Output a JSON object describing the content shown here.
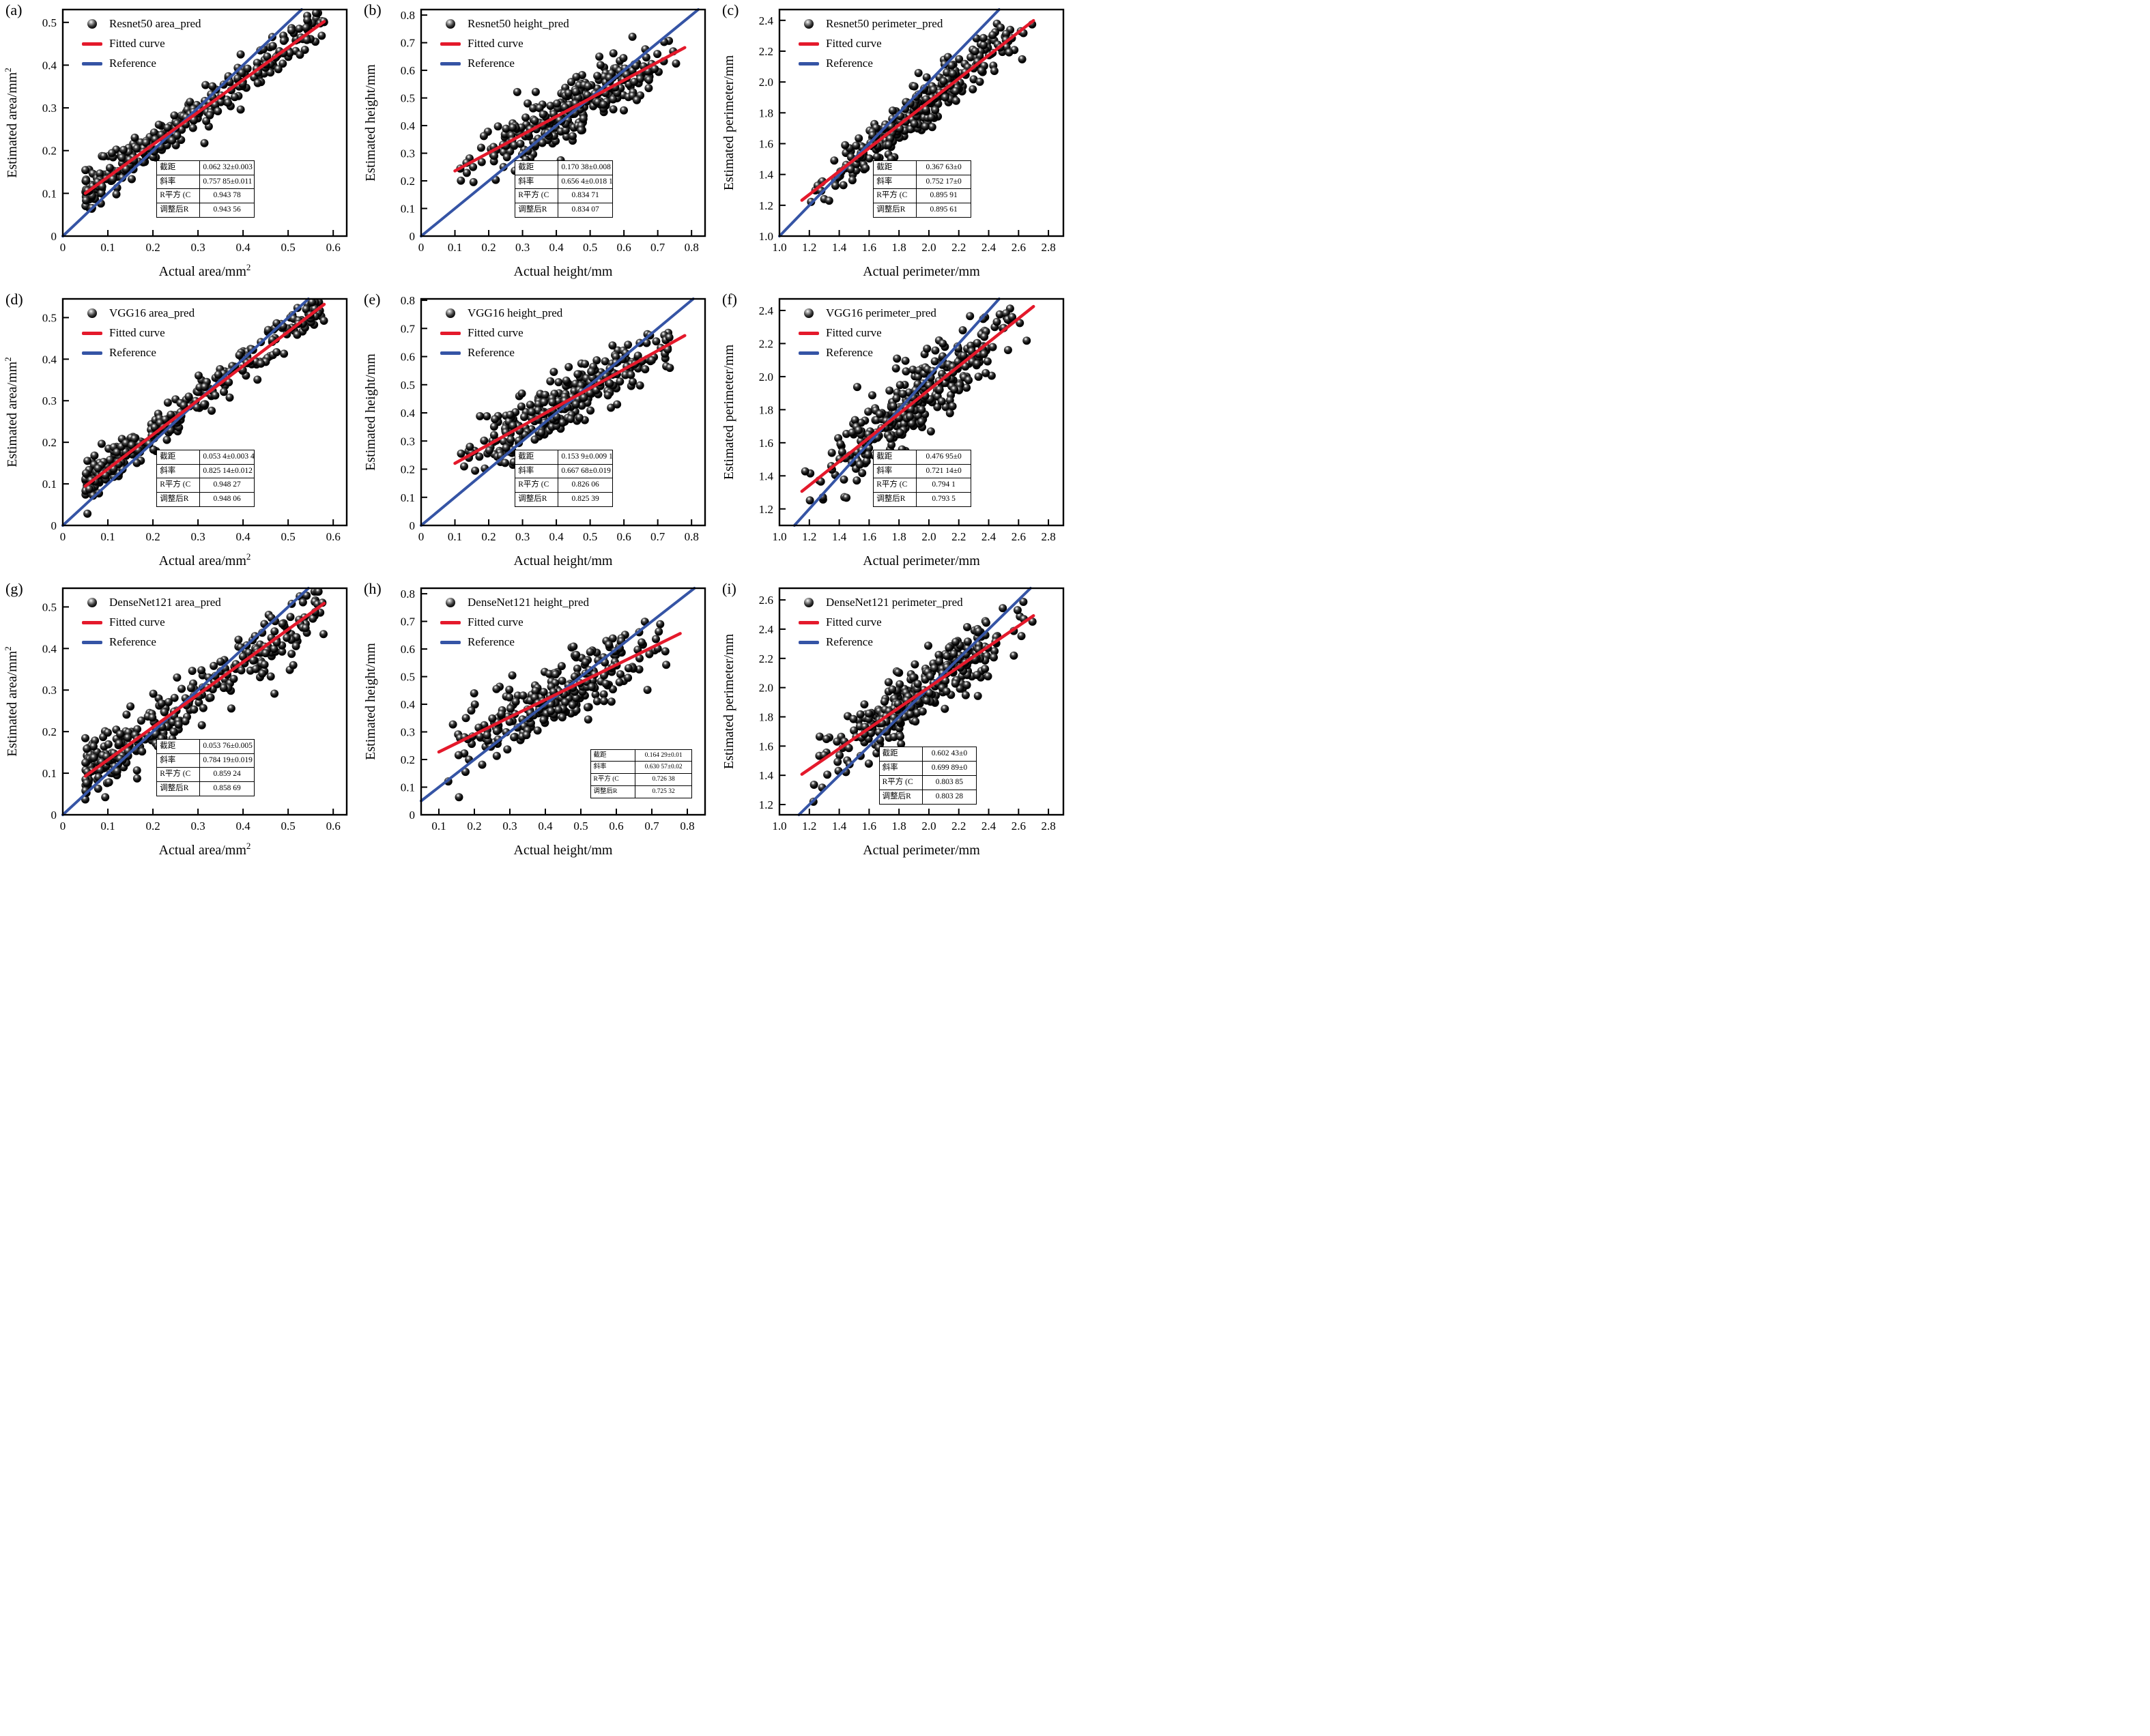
{
  "figure": {
    "legend_fitted": "Fitted curve",
    "legend_reference": "Reference",
    "reference_rule": "y = x",
    "table_labels": {
      "intercept": "截距",
      "slope": "斜率",
      "r2": "R平方 (C",
      "adj_r2": "调整后R"
    }
  },
  "colors": {
    "fitted": "#e4192b",
    "reference": "#3554a5",
    "marker": "#000000",
    "axis": "#000000"
  },
  "chart_data": [
    {
      "id": "a",
      "panel_label": "(a)",
      "type": "scatter",
      "series": "Resnet50 area_pred",
      "xlabel": "Actual area/mm",
      "xlabel_sup": "2",
      "ylabel": "Estimated area/mm",
      "ylabel_sup": "2",
      "xlim": [
        0,
        0.63
      ],
      "ylim": [
        0,
        0.53
      ],
      "xticks": {
        "values": [
          0,
          0.1,
          0.2,
          0.3,
          0.4,
          0.5,
          0.6
        ],
        "labels": [
          "0",
          "0.1",
          "0.2",
          "0.3",
          "0.4",
          "0.5",
          "0.6"
        ]
      },
      "yticks": {
        "values": [
          0,
          0.1,
          0.2,
          0.3,
          0.4,
          0.5
        ],
        "labels": [
          "0",
          "0.1",
          "0.2",
          "0.3",
          "0.4",
          "0.5"
        ]
      },
      "fit": {
        "intercept": 0.06232,
        "slope": 0.75785,
        "x_range": [
          0.05,
          0.58
        ]
      },
      "stats": {
        "intercept": "0.062 32±0.003 2",
        "slope": "0.757 85±0.011 5",
        "r2": "0.943 78",
        "adj_r2": "0.943 56"
      },
      "points": {
        "n": 320,
        "x_min": 0.05,
        "x_max": 0.58,
        "noise_sd": 0.022,
        "seed": 11,
        "x_dist": "pow",
        "x_exp": 1.5
      },
      "table_pos": {
        "left": 0.33,
        "top": 0.665,
        "width": 0.345,
        "font": 11.5
      }
    },
    {
      "id": "b",
      "panel_label": "(b)",
      "type": "scatter",
      "series": "Resnet50 height_pred",
      "xlabel": "Actual height/mm",
      "xlabel_sup": "",
      "ylabel": "Estimated height/mm",
      "ylabel_sup": "",
      "xlim": [
        0,
        0.84
      ],
      "ylim": [
        0,
        0.82
      ],
      "xticks": {
        "values": [
          0,
          0.1,
          0.2,
          0.3,
          0.4,
          0.5,
          0.6,
          0.7,
          0.8
        ],
        "labels": [
          "0",
          "0.1",
          "0.2",
          "0.3",
          "0.4",
          "0.5",
          "0.6",
          "0.7",
          "0.8"
        ]
      },
      "yticks": {
        "values": [
          0,
          0.1,
          0.2,
          0.3,
          0.4,
          0.5,
          0.6,
          0.7,
          0.8
        ],
        "labels": [
          "0",
          "0.1",
          "0.2",
          "0.3",
          "0.4",
          "0.5",
          "0.6",
          "0.7",
          "0.8"
        ]
      },
      "fit": {
        "intercept": 0.17038,
        "slope": 0.6564,
        "x_range": [
          0.1,
          0.78
        ]
      },
      "stats": {
        "intercept": "0.170 38±0.008",
        "slope": "0.656 4±0.018 1",
        "r2": "0.834 71",
        "adj_r2": "0.834 07"
      },
      "points": {
        "n": 300,
        "x_min": 0.1,
        "x_max": 0.78,
        "noise_sd": 0.05,
        "seed": 22,
        "x_dist": "tri"
      },
      "table_pos": {
        "left": 0.33,
        "top": 0.665,
        "width": 0.345,
        "font": 11.5
      }
    },
    {
      "id": "c",
      "panel_label": "(c)",
      "type": "scatter",
      "series": "Resnet50 perimeter_pred",
      "xlabel": "Actual perimeter/mm",
      "xlabel_sup": "",
      "ylabel": "Estimated perimeter/mm",
      "ylabel_sup": "",
      "xlim": [
        1.0,
        2.9
      ],
      "ylim": [
        1.0,
        2.47
      ],
      "xticks": {
        "values": [
          1.0,
          1.2,
          1.4,
          1.6,
          1.8,
          2.0,
          2.2,
          2.4,
          2.6,
          2.8
        ],
        "labels": [
          "1.0",
          "1.2",
          "1.4",
          "1.6",
          "1.8",
          "2.0",
          "2.2",
          "2.4",
          "2.6",
          "2.8"
        ]
      },
      "yticks": {
        "values": [
          1.0,
          1.2,
          1.4,
          1.6,
          1.8,
          2.0,
          2.2,
          2.4
        ],
        "labels": [
          "1.0",
          "1.2",
          "1.4",
          "1.6",
          "1.8",
          "2.0",
          "2.2",
          "2.4"
        ]
      },
      "fit": {
        "intercept": 0.36763,
        "slope": 0.75217,
        "x_range": [
          1.15,
          2.7
        ]
      },
      "stats": {
        "intercept": "0.367 63±0",
        "slope": "0.752 17±0",
        "r2": "0.895 91",
        "adj_r2": "0.895 61"
      },
      "points": {
        "n": 330,
        "x_min": 1.15,
        "x_max": 2.7,
        "noise_sd": 0.075,
        "seed": 33,
        "x_dist": "tri"
      },
      "table_pos": {
        "left": 0.33,
        "top": 0.665,
        "width": 0.345,
        "font": 11.5
      }
    },
    {
      "id": "d",
      "panel_label": "(d)",
      "type": "scatter",
      "series": "VGG16 area_pred",
      "xlabel": "Actual area/mm",
      "xlabel_sup": "2",
      "ylabel": "Estimated area/mm",
      "ylabel_sup": "2",
      "xlim": [
        0,
        0.63
      ],
      "ylim": [
        0,
        0.545
      ],
      "xticks": {
        "values": [
          0,
          0.1,
          0.2,
          0.3,
          0.4,
          0.5,
          0.6
        ],
        "labels": [
          "0",
          "0.1",
          "0.2",
          "0.3",
          "0.4",
          "0.5",
          "0.6"
        ]
      },
      "yticks": {
        "values": [
          0,
          0.1,
          0.2,
          0.3,
          0.4,
          0.5
        ],
        "labels": [
          "0",
          "0.1",
          "0.2",
          "0.3",
          "0.4",
          "0.5"
        ]
      },
      "fit": {
        "intercept": 0.0534,
        "slope": 0.82514,
        "x_range": [
          0.05,
          0.58
        ]
      },
      "stats": {
        "intercept": "0.053 4±0.003 43",
        "slope": "0.825 14±0.012",
        "r2": "0.948 27",
        "adj_r2": "0.948 06"
      },
      "points": {
        "n": 320,
        "x_min": 0.05,
        "x_max": 0.58,
        "noise_sd": 0.022,
        "seed": 44,
        "x_dist": "pow",
        "x_exp": 1.5
      },
      "table_pos": {
        "left": 0.33,
        "top": 0.665,
        "width": 0.345,
        "font": 11.5
      }
    },
    {
      "id": "e",
      "panel_label": "(e)",
      "type": "scatter",
      "series": "VGG16 height_pred",
      "xlabel": "Actual height/mm",
      "xlabel_sup": "",
      "ylabel": "Estimated height/mm",
      "ylabel_sup": "",
      "xlim": [
        0,
        0.84
      ],
      "ylim": [
        0,
        0.805
      ],
      "xticks": {
        "values": [
          0,
          0.1,
          0.2,
          0.3,
          0.4,
          0.5,
          0.6,
          0.7,
          0.8
        ],
        "labels": [
          "0",
          "0.1",
          "0.2",
          "0.3",
          "0.4",
          "0.5",
          "0.6",
          "0.7",
          "0.8"
        ]
      },
      "yticks": {
        "values": [
          0,
          0.1,
          0.2,
          0.3,
          0.4,
          0.5,
          0.6,
          0.7,
          0.8
        ],
        "labels": [
          "0",
          "0.1",
          "0.2",
          "0.3",
          "0.4",
          "0.5",
          "0.6",
          "0.7",
          "0.8"
        ]
      },
      "fit": {
        "intercept": 0.1539,
        "slope": 0.66768,
        "x_range": [
          0.1,
          0.78
        ]
      },
      "stats": {
        "intercept": "0.153 9±0.009 19",
        "slope": "0.667 68±0.019 07",
        "r2": "0.826 06",
        "adj_r2": "0.825 39"
      },
      "points": {
        "n": 300,
        "x_min": 0.1,
        "x_max": 0.78,
        "noise_sd": 0.05,
        "seed": 55,
        "x_dist": "tri"
      },
      "table_pos": {
        "left": 0.33,
        "top": 0.665,
        "width": 0.345,
        "font": 11.5
      }
    },
    {
      "id": "f",
      "panel_label": "(f)",
      "type": "scatter",
      "series": "VGG16 perimeter_pred",
      "xlabel": "Actual perimeter/mm",
      "xlabel_sup": "",
      "ylabel": "Estimated perimeter/mm",
      "ylabel_sup": "",
      "xlim": [
        1.0,
        2.9
      ],
      "ylim": [
        1.1,
        2.47
      ],
      "xticks": {
        "values": [
          1.0,
          1.2,
          1.4,
          1.6,
          1.8,
          2.0,
          2.2,
          2.4,
          2.6,
          2.8
        ],
        "labels": [
          "1.0",
          "1.2",
          "1.4",
          "1.6",
          "1.8",
          "2.0",
          "2.2",
          "2.4",
          "2.6",
          "2.8"
        ]
      },
      "yticks": {
        "values": [
          1.2,
          1.4,
          1.6,
          1.8,
          2.0,
          2.2,
          2.4
        ],
        "labels": [
          "1.2",
          "1.4",
          "1.6",
          "1.8",
          "2.0",
          "2.2",
          "2.4"
        ]
      },
      "fit": {
        "intercept": 0.47695,
        "slope": 0.72114,
        "x_range": [
          1.15,
          2.7
        ]
      },
      "stats": {
        "intercept": "0.476 95±0",
        "slope": "0.721 14±0",
        "r2": "0.794 1",
        "adj_r2": "0.793 5"
      },
      "points": {
        "n": 330,
        "x_min": 1.15,
        "x_max": 2.7,
        "noise_sd": 0.1,
        "seed": 66,
        "x_dist": "tri"
      },
      "table_pos": {
        "left": 0.33,
        "top": 0.665,
        "width": 0.345,
        "font": 11.5
      }
    },
    {
      "id": "g",
      "panel_label": "(g)",
      "type": "scatter",
      "series": "DenseNet121 area_pred",
      "xlabel": "Actual area/mm",
      "xlabel_sup": "2",
      "ylabel": "Estimated area/mm",
      "ylabel_sup": "2",
      "xlim": [
        0,
        0.63
      ],
      "ylim": [
        0,
        0.545
      ],
      "xticks": {
        "values": [
          0,
          0.1,
          0.2,
          0.3,
          0.4,
          0.5,
          0.6
        ],
        "labels": [
          "0",
          "0.1",
          "0.2",
          "0.3",
          "0.4",
          "0.5",
          "0.6"
        ]
      },
      "yticks": {
        "values": [
          0,
          0.1,
          0.2,
          0.3,
          0.4,
          0.5
        ],
        "labels": [
          "0",
          "0.1",
          "0.2",
          "0.3",
          "0.4",
          "0.5"
        ]
      },
      "fit": {
        "intercept": 0.05376,
        "slope": 0.78419,
        "x_range": [
          0.05,
          0.58
        ]
      },
      "stats": {
        "intercept": "0.053 76±0.005",
        "slope": "0.784 19±0.019",
        "r2": "0.859 24",
        "adj_r2": "0.858 69"
      },
      "points": {
        "n": 320,
        "x_min": 0.05,
        "x_max": 0.58,
        "noise_sd": 0.035,
        "seed": 77,
        "x_dist": "pow",
        "x_exp": 1.5
      },
      "table_pos": {
        "left": 0.33,
        "top": 0.665,
        "width": 0.345,
        "font": 11.5
      }
    },
    {
      "id": "h",
      "panel_label": "(h)",
      "type": "scatter",
      "series": "DenseNet121 height_pred",
      "xlabel": "Actual height/mm",
      "xlabel_sup": "",
      "ylabel": "Estimated height/mm",
      "ylabel_sup": "",
      "xlim": [
        0.05,
        0.85
      ],
      "ylim": [
        0,
        0.82
      ],
      "xticks": {
        "values": [
          0.1,
          0.2,
          0.3,
          0.4,
          0.5,
          0.6,
          0.7,
          0.8
        ],
        "labels": [
          "0.1",
          "0.2",
          "0.3",
          "0.4",
          "0.5",
          "0.6",
          "0.7",
          "0.8"
        ]
      },
      "yticks": {
        "values": [
          0,
          0.1,
          0.2,
          0.3,
          0.4,
          0.5,
          0.6,
          0.7,
          0.8
        ],
        "labels": [
          "0",
          "0.1",
          "0.2",
          "0.3",
          "0.4",
          "0.5",
          "0.6",
          "0.7",
          "0.8"
        ]
      },
      "fit": {
        "intercept": 0.16429,
        "slope": 0.63057,
        "x_range": [
          0.1,
          0.78
        ]
      },
      "stats": {
        "intercept": "0.164 29±0.01",
        "slope": "0.630 57±0.02",
        "r2": "0.726 38",
        "adj_r2": "0.725 32"
      },
      "points": {
        "n": 280,
        "x_min": 0.1,
        "x_max": 0.78,
        "noise_sd": 0.065,
        "seed": 88,
        "x_dist": "tri"
      },
      "table_pos": {
        "left": 0.595,
        "top": 0.71,
        "width": 0.36,
        "font": 9.5
      }
    },
    {
      "id": "i",
      "panel_label": "(i)",
      "type": "scatter",
      "series": "DenseNet121 perimeter_pred",
      "xlabel": "Actual perimeter/mm",
      "xlabel_sup": "",
      "ylabel": "Estimated perimeter/mm",
      "ylabel_sup": "",
      "xlim": [
        1.0,
        2.9
      ],
      "ylim": [
        1.13,
        2.68
      ],
      "xticks": {
        "values": [
          1.0,
          1.2,
          1.4,
          1.6,
          1.8,
          2.0,
          2.2,
          2.4,
          2.6,
          2.8
        ],
        "labels": [
          "1.0",
          "1.2",
          "1.4",
          "1.6",
          "1.8",
          "2.0",
          "2.2",
          "2.4",
          "2.6",
          "2.8"
        ]
      },
      "yticks": {
        "values": [
          1.2,
          1.4,
          1.6,
          1.8,
          2.0,
          2.2,
          2.4,
          2.6
        ],
        "labels": [
          "1.2",
          "1.4",
          "1.6",
          "1.8",
          "2.0",
          "2.2",
          "2.4",
          "2.6"
        ]
      },
      "fit": {
        "intercept": 0.60243,
        "slope": 0.69989,
        "x_range": [
          1.15,
          2.7
        ]
      },
      "stats": {
        "intercept": "0.602 43±0",
        "slope": "0.699 89±0",
        "r2": "0.803 85",
        "adj_r2": "0.803 28"
      },
      "points": {
        "n": 330,
        "x_min": 1.15,
        "x_max": 2.7,
        "noise_sd": 0.11,
        "seed": 99,
        "x_dist": "tri"
      },
      "table_pos": {
        "left": 0.35,
        "top": 0.7,
        "width": 0.345,
        "font": 11.5
      }
    }
  ]
}
